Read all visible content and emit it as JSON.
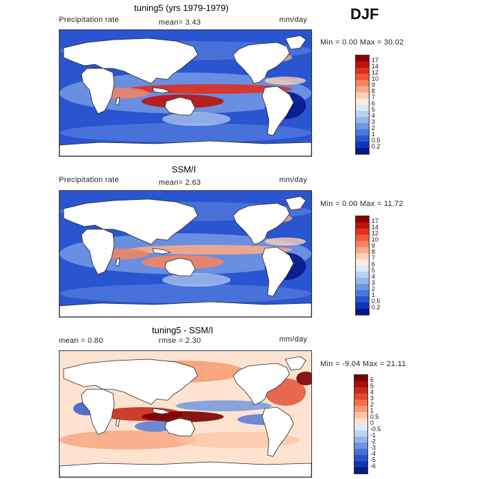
{
  "season": "DJF",
  "panels": [
    {
      "title": "tuning5 (yrs 1979-1979)",
      "variable": "Precipitation rate",
      "mean_text": "mean=   3.43",
      "units": "mm/day",
      "min_max": "Min =    0.00 Max =  30.02",
      "colorbar_labels": [
        "17",
        "14",
        "12",
        "10",
        "9",
        "8",
        "7",
        "6",
        "5",
        "4",
        "3",
        "2",
        "1",
        "0.5",
        "0.2"
      ],
      "colorbar_colors": [
        "#8b0000",
        "#c0120b",
        "#e0301e",
        "#f05a3a",
        "#f5845e",
        "#f8aa86",
        "#fbd0b4",
        "#fdeedd",
        "#dfe8f8",
        "#bcd1f2",
        "#97b6eb",
        "#6f96e2",
        "#4b76da",
        "#2a55d1",
        "#1234b8",
        "#05188a"
      ],
      "map_kind": "precip"
    },
    {
      "title": "SSM/I",
      "variable": "Precipitation rate",
      "mean_text": "mean=   2.63",
      "units": "mm/day",
      "min_max": "Min =    0.00 Max =  11.72",
      "colorbar_labels": [
        "17",
        "14",
        "12",
        "10",
        "9",
        "8",
        "7",
        "6",
        "5",
        "4",
        "3",
        "2",
        "1",
        "0.5",
        "0.2"
      ],
      "colorbar_colors": [
        "#8b0000",
        "#c0120b",
        "#e0301e",
        "#f05a3a",
        "#f5845e",
        "#f8aa86",
        "#fbd0b4",
        "#fdeedd",
        "#dfe8f8",
        "#bcd1f2",
        "#97b6eb",
        "#6f96e2",
        "#4b76da",
        "#2a55d1",
        "#1234b8",
        "#05188a"
      ],
      "map_kind": "obs"
    },
    {
      "title": "tuning5 - SSM/I",
      "mean_text": "mean =    0.80",
      "rmse_text": "rmse =    2.30",
      "units": "mm/day",
      "min_max": "Min =  -9.04 Max =  21.11",
      "colorbar_labels": [
        "6",
        "5",
        "4",
        "3",
        "2",
        "1",
        "0.5",
        "0",
        "-0.5",
        "-1",
        "-2",
        "-3",
        "-4",
        "-5",
        "-6"
      ],
      "colorbar_colors": [
        "#7a0000",
        "#a50f0f",
        "#c72a1c",
        "#e04a2e",
        "#f07048",
        "#f79a72",
        "#fbc3a2",
        "#fde3d0",
        "#dfe9f8",
        "#bcd2f1",
        "#93b4e8",
        "#6c93de",
        "#4a72d4",
        "#2b52c9",
        "#1434b2",
        "#051a85"
      ],
      "map_kind": "diff"
    }
  ]
}
